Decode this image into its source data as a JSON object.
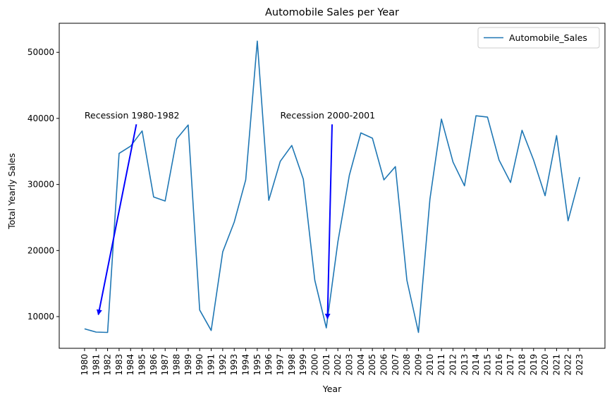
{
  "chart_data": {
    "type": "line",
    "title": "Automobile Sales per Year",
    "xlabel": "Year",
    "ylabel": "Total Yearly Sales",
    "xlim": [
      1977.8,
      2025.2
    ],
    "ylim": [
      5200,
      54400
    ],
    "yticks": [
      10000,
      20000,
      30000,
      40000,
      50000
    ],
    "grid": false,
    "legend_position": "top-right",
    "series": [
      {
        "name": "Automobile_Sales",
        "color": "#1f77b4",
        "x": [
          1980,
          1981,
          1982,
          1983,
          1984,
          1985,
          1986,
          1987,
          1988,
          1989,
          1990,
          1991,
          1992,
          1993,
          1994,
          1995,
          1996,
          1997,
          1998,
          1999,
          2000,
          2001,
          2002,
          2003,
          2004,
          2005,
          2006,
          2007,
          2008,
          2009,
          2010,
          2011,
          2012,
          2013,
          2014,
          2015,
          2016,
          2017,
          2018,
          2019,
          2020,
          2021,
          2022,
          2023
        ],
        "y": [
          8150,
          7650,
          7600,
          34700,
          35800,
          38100,
          28100,
          27500,
          36900,
          39000,
          11000,
          7900,
          19800,
          24300,
          30700,
          51700,
          27600,
          33500,
          35900,
          30800,
          15500,
          8300,
          21300,
          31400,
          37800,
          37000,
          30700,
          32700,
          15500,
          7600,
          27800,
          39900,
          33400,
          29800,
          40400,
          40200,
          33700,
          30300,
          38200,
          33700,
          28300,
          37400,
          24500,
          31100
        ]
      }
    ],
    "annotations": [
      {
        "text": "Recession 1980-1982",
        "text_x": 1980,
        "text_y": 40000,
        "arrow_from": [
          1984.5,
          39100
        ],
        "arrow_to": [
          1981.2,
          10300
        ],
        "arrow_color": "#0000ff"
      },
      {
        "text": "Recession 2000-2001",
        "text_x": 1997,
        "text_y": 40000,
        "arrow_from": [
          2001.5,
          39100
        ],
        "arrow_to": [
          2001.1,
          9700
        ],
        "arrow_color": "#0000ff"
      }
    ]
  }
}
